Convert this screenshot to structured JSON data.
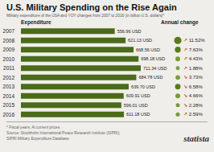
{
  "chart_data": {
    "type": "bar",
    "orientation": "horizontal",
    "title": "U.S. Military Spending on the Rise Again",
    "subtitle": "Military expenditure of the USA and YOY changes from 2007 to 2016 (in billion U.S. dollars)*",
    "footnote": "* Fiscal years. At current prices.\nSource: Stockholm International Peace Research Institute (SIPRI);\nSIPRI Military Expenditure Database",
    "annotations": [
      "Expenditure",
      "Annual change",
      "statista"
    ],
    "categories": [
      "2007",
      "2008",
      "2009",
      "2010",
      "2011",
      "2012",
      "2013",
      "2014",
      "2015",
      "2016"
    ],
    "values": [
      556.96,
      621.13,
      668.56,
      698.18,
      711.34,
      684.78,
      639.7,
      609.91,
      596.01,
      611.18
    ],
    "value_labels": [
      "556.96 USD",
      "621.13 USD",
      "668.56 USD",
      "698.18 USD",
      "711.34 USD",
      "684.78 USD",
      "639.70 USD",
      "609.91 USD",
      "596.01 USD",
      "611.18 USD"
    ],
    "data_labels": true,
    "color": "#4a6b1a",
    "xlim": [
      0,
      850
    ],
    "tick_labels": "y",
    "changes": {
      "values": [
        null,
        11.52,
        7.63,
        4.43,
        1.88,
        -3.73,
        -6.58,
        -4.66,
        -2.28,
        2.59
      ],
      "value_labels": [
        null,
        "↗ 11.52%",
        "↗ 7.63%",
        "↗ 4.43%",
        "↗ 1.88%",
        "↘ 3.73%",
        "↘ 6.58%",
        "↘ 4.66%",
        "↘ 2.28%",
        "↗ 2.59%"
      ],
      "colors": [
        null,
        "#5a7a1a",
        "#5a7a1a",
        "#7a9a3a",
        "#7a9a3a",
        "#7a9a3a",
        "#5a7a1a",
        "#7a9a3a",
        "#7a9a3a",
        "#7a9a3a"
      ]
    }
  }
}
